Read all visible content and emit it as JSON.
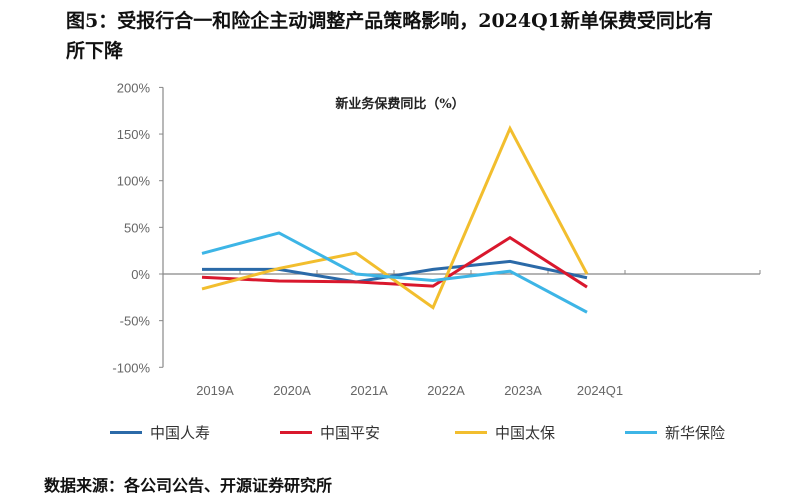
{
  "title": "图5：受报行合一和险企主动调整产品策略影响，2024Q1新单保费受同比有所下降",
  "source": "数据来源：各公司公告、开源证券研究所",
  "chart_data": {
    "type": "line",
    "title": "新业务保费同比（%）",
    "categories": [
      "2019A",
      "2020A",
      "2021A",
      "2022A",
      "2023A",
      "2024Q1"
    ],
    "y_ticks": [
      "200%",
      "150%",
      "100%",
      "50%",
      "0%",
      "-50%",
      "-100%"
    ],
    "ylim": [
      -100,
      200
    ],
    "grid": false,
    "legend": "bottom",
    "series": [
      {
        "name": "中国人寿",
        "color": "#2B6AA8",
        "values": [
          5,
          5,
          -8.5,
          5,
          13.5,
          -4
        ]
      },
      {
        "name": "中国平安",
        "color": "#D9182D",
        "values": [
          -3.5,
          -7.5,
          -8.5,
          -13,
          39,
          -14
        ]
      },
      {
        "name": "中国太保",
        "color": "#F2BE2E",
        "values": [
          -16,
          6,
          22.5,
          -36,
          156,
          0
        ]
      },
      {
        "name": "新华保险",
        "color": "#3DB5E6",
        "values": [
          22,
          44,
          0,
          -7,
          3,
          -41
        ]
      }
    ]
  }
}
